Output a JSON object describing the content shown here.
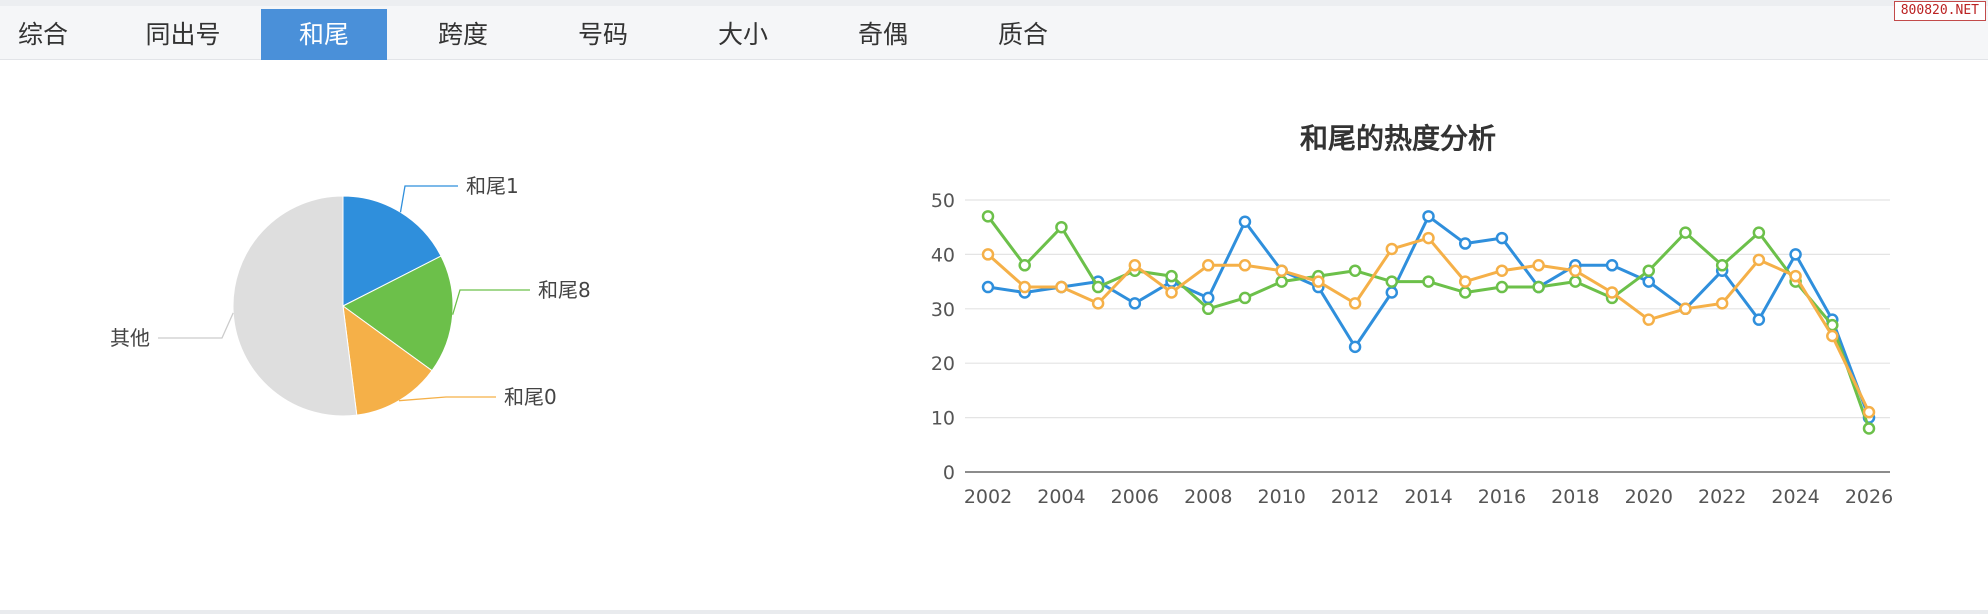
{
  "tabs": [
    "综合",
    "同出号",
    "和尾",
    "跨度",
    "号码",
    "大小",
    "奇偶",
    "质合"
  ],
  "active_tab": 2,
  "watermark": "800820.NET",
  "chart_data": [
    {
      "type": "pie",
      "slices": [
        {
          "label": "和尾1",
          "value": 17.5,
          "color": "#2f8fdc"
        },
        {
          "label": "和尾8",
          "value": 17.5,
          "color": "#6cc04a"
        },
        {
          "label": "和尾0",
          "value": 13,
          "color": "#f5b048"
        },
        {
          "label": "其他",
          "value": 52,
          "color": "#dedede"
        }
      ]
    },
    {
      "type": "line",
      "title": "和尾的热度分析",
      "x": [
        2002,
        2003,
        2004,
        2005,
        2006,
        2007,
        2008,
        2009,
        2010,
        2011,
        2012,
        2013,
        2014,
        2015,
        2016,
        2017,
        2018,
        2019,
        2020,
        2021,
        2022,
        2023,
        2024,
        2025,
        2026
      ],
      "xticks": [
        2002,
        2004,
        2006,
        2008,
        2010,
        2012,
        2014,
        2016,
        2018,
        2020,
        2022,
        2024,
        2026
      ],
      "yticks": [
        0,
        10,
        20,
        30,
        40,
        50
      ],
      "ylim": [
        0,
        50
      ],
      "series": [
        {
          "color": "#2f8fdc",
          "values": [
            34,
            33,
            34,
            35,
            31,
            35,
            32,
            46,
            37,
            34,
            23,
            33,
            47,
            42,
            43,
            34,
            38,
            38,
            35,
            30,
            37,
            28,
            40,
            28,
            10
          ]
        },
        {
          "color": "#6cc04a",
          "values": [
            47,
            38,
            45,
            34,
            37,
            36,
            30,
            32,
            35,
            36,
            37,
            35,
            35,
            33,
            34,
            34,
            35,
            32,
            37,
            44,
            38,
            44,
            35,
            27,
            8
          ]
        },
        {
          "color": "#f5b048",
          "values": [
            40,
            34,
            34,
            31,
            38,
            33,
            38,
            38,
            37,
            35,
            31,
            41,
            43,
            35,
            37,
            38,
            37,
            33,
            28,
            30,
            31,
            39,
            36,
            25,
            11
          ]
        }
      ]
    }
  ]
}
